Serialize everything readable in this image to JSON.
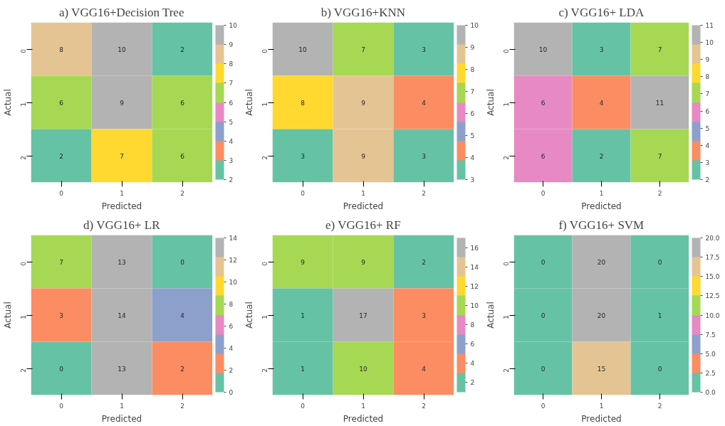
{
  "chart_data": [
    {
      "type": "heatmap",
      "title": "a) VGG16+Decision Tree",
      "xlabel": "Predicted",
      "ylabel": "Actual",
      "categories": [
        "0",
        "1",
        "2"
      ],
      "y_categories": [
        "0",
        "1",
        "2"
      ],
      "cells": [
        [
          8,
          10,
          2
        ],
        [
          6,
          9,
          6
        ],
        [
          2,
          7,
          6
        ]
      ],
      "clim": [
        2,
        10
      ],
      "cticks": [
        2,
        3,
        4,
        5,
        6,
        7,
        8,
        9,
        10
      ],
      "data_labels": true
    },
    {
      "type": "heatmap",
      "title": "b) VGG16+KNN",
      "xlabel": "Predicted",
      "ylabel": "Actual",
      "categories": [
        "0",
        "1",
        "2"
      ],
      "y_categories": [
        "0",
        "1",
        "2"
      ],
      "cells": [
        [
          10,
          7,
          3
        ],
        [
          8,
          9,
          4
        ],
        [
          3,
          9,
          3
        ]
      ],
      "clim": [
        3,
        10
      ],
      "cticks": [
        3,
        4,
        5,
        6,
        7,
        8,
        9,
        10
      ],
      "data_labels": true
    },
    {
      "type": "heatmap",
      "title": "c) VGG16+ LDA",
      "xlabel": "Predicted",
      "ylabel": "Actual",
      "categories": [
        "0",
        "1",
        "2"
      ],
      "y_categories": [
        "0",
        "1",
        "2"
      ],
      "cells": [
        [
          10,
          3,
          7
        ],
        [
          6,
          4,
          11
        ],
        [
          6,
          2,
          7
        ]
      ],
      "clim": [
        2,
        11
      ],
      "cticks": [
        2,
        3,
        4,
        5,
        6,
        7,
        8,
        9,
        10,
        11
      ],
      "data_labels": true
    },
    {
      "type": "heatmap",
      "title": "d) VGG16+ LR",
      "xlabel": "Predicted",
      "ylabel": "Actual",
      "categories": [
        "0",
        "1",
        "2"
      ],
      "y_categories": [
        "0",
        "1",
        "2"
      ],
      "cells": [
        [
          7,
          13,
          0
        ],
        [
          3,
          14,
          4
        ],
        [
          0,
          13,
          2
        ]
      ],
      "clim": [
        0,
        14
      ],
      "cticks": [
        0,
        2,
        4,
        6,
        8,
        10,
        12,
        14
      ],
      "data_labels": true
    },
    {
      "type": "heatmap",
      "title": "e) VGG16+ RF",
      "xlabel": "Predicted",
      "ylabel": "Actual",
      "categories": [
        "0",
        "1",
        "2"
      ],
      "y_categories": [
        "0",
        "1",
        "2"
      ],
      "cells": [
        [
          9,
          9,
          2
        ],
        [
          1,
          17,
          3
        ],
        [
          1,
          10,
          4
        ]
      ],
      "clim": [
        1,
        17
      ],
      "cticks": [
        2,
        4,
        6,
        8,
        10,
        12,
        14,
        16
      ],
      "data_labels": true
    },
    {
      "type": "heatmap",
      "title": "f) VGG16+ SVM",
      "xlabel": "Predicted",
      "ylabel": "Actual",
      "categories": [
        "0",
        "1",
        "2"
      ],
      "y_categories": [
        "0",
        "1",
        "2"
      ],
      "cells": [
        [
          0,
          20,
          0
        ],
        [
          0,
          20,
          1
        ],
        [
          0,
          15,
          0
        ]
      ],
      "clim": [
        0,
        20
      ],
      "cticks": [
        {
          "value": 0,
          "label": "0.0"
        },
        {
          "value": 2.5,
          "label": "2.5"
        },
        {
          "value": 5,
          "label": "5.0"
        },
        {
          "value": 7.5,
          "label": "7.5"
        },
        {
          "value": 10,
          "label": "10.0"
        },
        {
          "value": 12.5,
          "label": "12.5"
        },
        {
          "value": 15,
          "label": "15.0"
        },
        {
          "value": 17.5,
          "label": "17.5"
        },
        {
          "value": 20,
          "label": "20.0"
        }
      ],
      "data_labels": true
    }
  ]
}
